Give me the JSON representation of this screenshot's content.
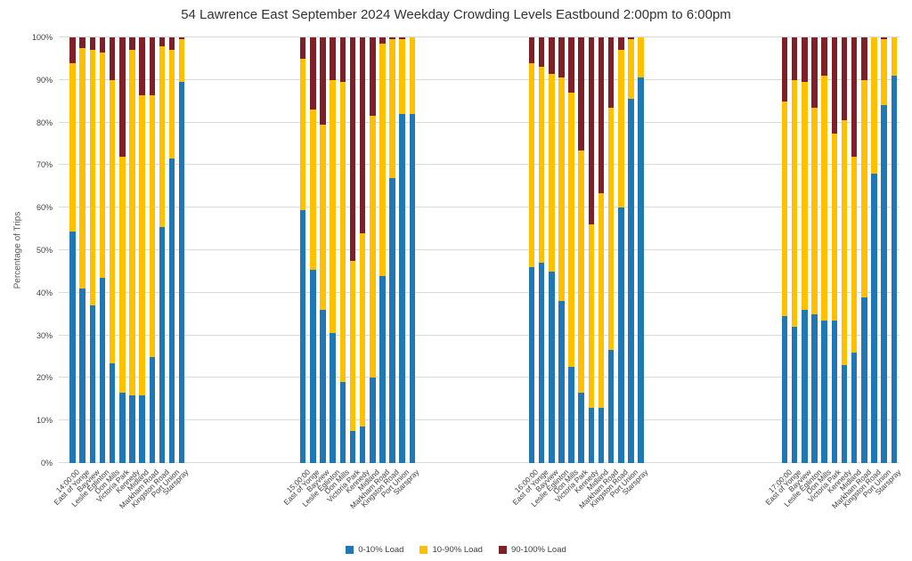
{
  "title": "54 Lawrence East September 2024  Weekday Crowding Levels Eastbound 2:00pm to 6:00pm",
  "chart_data": {
    "type": "bar",
    "stacked": true,
    "title": "54 Lawrence East September 2024  Weekday Crowding Levels Eastbound 2:00pm to 6:00pm",
    "xlabel": "",
    "ylabel": "Percentage of Trips",
    "ylim": [
      0,
      100
    ],
    "unit": "percent of trips",
    "grid": true,
    "legend_position": "bottom-center",
    "y_ticks": [
      "0%",
      "10%",
      "20%",
      "30%",
      "40%",
      "50%",
      "60%",
      "70%",
      "80%",
      "90%",
      "100%"
    ],
    "series": [
      {
        "name": "0-10% Load",
        "color": "#1F77B4"
      },
      {
        "name": "10-90% Load",
        "color": "#FFC000"
      },
      {
        "name": "90-100% Load",
        "color": "#7D2027"
      }
    ],
    "values_note": "Each bar = [0-10% Load, 10-90% Load, 90-100% Load], summing to 100",
    "groups": [
      {
        "hour": "14:00:00",
        "categories": [
          "14:00:00",
          "East of Yonge",
          "Bayview",
          "Leslie Eglinton",
          "Don Mills",
          "Victoria Park",
          "Kennedy",
          "Midland",
          "Markham Road",
          "Kingston Road",
          "Port Union",
          "Starspray"
        ],
        "values": [
          [
            54.5,
            39.5,
            6
          ],
          [
            41,
            56.5,
            2.5
          ],
          [
            37,
            60,
            3
          ],
          [
            43.5,
            53,
            3.5
          ],
          [
            23.5,
            66.5,
            10
          ],
          [
            16.5,
            55.5,
            28
          ],
          [
            16,
            81,
            3
          ],
          [
            16,
            70.5,
            13.5
          ],
          [
            24.8,
            61.7,
            13.5
          ],
          [
            55.5,
            42.5,
            2
          ],
          [
            71.5,
            25.5,
            3
          ],
          [
            89.5,
            10,
            0.5
          ]
        ]
      },
      {
        "hour": "15:00:00",
        "categories": [
          "15:00:00",
          "East of Yonge",
          "Bayview",
          "Leslie Eglinton",
          "Don Mills",
          "Victoria Park",
          "Kennedy",
          "Midland",
          "Markham Road",
          "Kingston Road",
          "Port Union",
          "Starspray"
        ],
        "values": [
          [
            59.5,
            35.5,
            5
          ],
          [
            45.5,
            37.5,
            17
          ],
          [
            36,
            43.5,
            20.5
          ],
          [
            30.5,
            59.5,
            10
          ],
          [
            19,
            70.5,
            10.5
          ],
          [
            7.5,
            40,
            52.5
          ],
          [
            8.5,
            45.5,
            46
          ],
          [
            20,
            61.5,
            18.5
          ],
          [
            44,
            54.5,
            1.5
          ],
          [
            67,
            32.5,
            0.5
          ],
          [
            82,
            17.5,
            0.5
          ],
          [
            82,
            18,
            0
          ]
        ]
      },
      {
        "hour": "16:00:00",
        "categories": [
          "16:00:00",
          "East of Yonge",
          "Bayview",
          "Leslie Eglinton",
          "Don Mills",
          "Victoria Park",
          "Kennedy",
          "Midland",
          "Markham Road",
          "Kingston Road",
          "Port Union",
          "Starspray"
        ],
        "values": [
          [
            46,
            48,
            6
          ],
          [
            47,
            46,
            7
          ],
          [
            45,
            46.5,
            8.5
          ],
          [
            38,
            52.5,
            9.5
          ],
          [
            22.5,
            64.5,
            13
          ],
          [
            16.5,
            57,
            26.5
          ],
          [
            13,
            43,
            44
          ],
          [
            13,
            50.5,
            36.5
          ],
          [
            26.5,
            57,
            16.5
          ],
          [
            60,
            37,
            3
          ],
          [
            85.5,
            14,
            0.5
          ],
          [
            90.5,
            9.5,
            0
          ]
        ]
      },
      {
        "hour": "17:00:00",
        "categories": [
          "17:00:00",
          "East of Yonge",
          "Bayview",
          "Leslie Eglinton",
          "Don Mills",
          "Victoria Park",
          "Kennedy",
          "Midland",
          "Markham Road",
          "Kingston Road",
          "Port Union",
          "Starspray"
        ],
        "values": [
          [
            34.5,
            50.5,
            15
          ],
          [
            32,
            58,
            10
          ],
          [
            36,
            53.5,
            10.5
          ],
          [
            35,
            48.5,
            16.5
          ],
          [
            33.5,
            57.5,
            9
          ],
          [
            33.5,
            44,
            22.5
          ],
          [
            23,
            57.5,
            19.5
          ],
          [
            26,
            46,
            28
          ],
          [
            39,
            51,
            10
          ],
          [
            68,
            32,
            0
          ],
          [
            84,
            15.5,
            0.5
          ],
          [
            91,
            9,
            0
          ]
        ]
      }
    ]
  }
}
